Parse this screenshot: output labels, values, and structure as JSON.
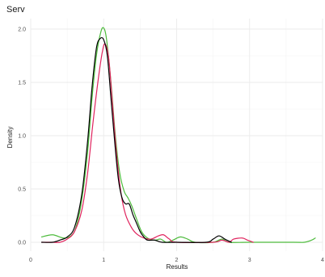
{
  "chart_data": {
    "type": "line",
    "title": "Serv",
    "xlabel": "Results",
    "ylabel": "Density",
    "xlim": [
      0,
      4
    ],
    "ylim": [
      0,
      2.0
    ],
    "x_ticks": [
      "0",
      "1",
      "2",
      "3",
      "4"
    ],
    "y_ticks": [
      "0.0",
      "0.5",
      "1.0",
      "1.5",
      "2.0"
    ],
    "grid": true,
    "legend": "none",
    "series": [
      {
        "color": "#000000",
        "points": [
          [
            0.15,
            0.0
          ],
          [
            0.3,
            0.0
          ],
          [
            0.4,
            0.02
          ],
          [
            0.5,
            0.05
          ],
          [
            0.6,
            0.14
          ],
          [
            0.7,
            0.45
          ],
          [
            0.78,
            0.95
          ],
          [
            0.84,
            1.45
          ],
          [
            0.9,
            1.82
          ],
          [
            0.95,
            1.91
          ],
          [
            1.0,
            1.9
          ],
          [
            1.05,
            1.75
          ],
          [
            1.1,
            1.35
          ],
          [
            1.15,
            0.95
          ],
          [
            1.2,
            0.6
          ],
          [
            1.25,
            0.42
          ],
          [
            1.3,
            0.36
          ],
          [
            1.35,
            0.36
          ],
          [
            1.4,
            0.26
          ],
          [
            1.45,
            0.18
          ],
          [
            1.5,
            0.1
          ],
          [
            1.55,
            0.05
          ],
          [
            1.6,
            0.02
          ],
          [
            1.7,
            0.02
          ],
          [
            1.8,
            0.0
          ],
          [
            2.0,
            0.0
          ],
          [
            2.4,
            0.0
          ],
          [
            2.5,
            0.03
          ],
          [
            2.58,
            0.06
          ],
          [
            2.66,
            0.03
          ],
          [
            2.75,
            0.0
          ]
        ]
      },
      {
        "color": "#e0245e",
        "points": [
          [
            0.15,
            0.0
          ],
          [
            0.3,
            0.0
          ],
          [
            0.4,
            0.0
          ],
          [
            0.5,
            0.03
          ],
          [
            0.6,
            0.1
          ],
          [
            0.7,
            0.3
          ],
          [
            0.78,
            0.65
          ],
          [
            0.85,
            1.1
          ],
          [
            0.92,
            1.5
          ],
          [
            0.98,
            1.78
          ],
          [
            1.02,
            1.86
          ],
          [
            1.07,
            1.72
          ],
          [
            1.12,
            1.3
          ],
          [
            1.18,
            0.8
          ],
          [
            1.24,
            0.45
          ],
          [
            1.3,
            0.26
          ],
          [
            1.38,
            0.14
          ],
          [
            1.45,
            0.08
          ],
          [
            1.55,
            0.04
          ],
          [
            1.65,
            0.03
          ],
          [
            1.75,
            0.06
          ],
          [
            1.82,
            0.07
          ],
          [
            1.9,
            0.03
          ],
          [
            2.0,
            0.0
          ],
          [
            2.5,
            0.0
          ],
          [
            2.62,
            0.02
          ],
          [
            2.72,
            0.0
          ],
          [
            2.78,
            0.03
          ],
          [
            2.9,
            0.04
          ],
          [
            2.97,
            0.02
          ],
          [
            3.05,
            0.0
          ]
        ]
      },
      {
        "color": "#4dbb3c",
        "points": [
          [
            0.15,
            0.05
          ],
          [
            0.3,
            0.07
          ],
          [
            0.45,
            0.04
          ],
          [
            0.55,
            0.06
          ],
          [
            0.62,
            0.14
          ],
          [
            0.7,
            0.4
          ],
          [
            0.78,
            0.85
          ],
          [
            0.84,
            1.35
          ],
          [
            0.9,
            1.75
          ],
          [
            0.96,
            1.97
          ],
          [
            1.0,
            2.01
          ],
          [
            1.04,
            1.9
          ],
          [
            1.1,
            1.5
          ],
          [
            1.16,
            1.0
          ],
          [
            1.22,
            0.65
          ],
          [
            1.28,
            0.48
          ],
          [
            1.33,
            0.42
          ],
          [
            1.38,
            0.35
          ],
          [
            1.45,
            0.22
          ],
          [
            1.52,
            0.1
          ],
          [
            1.6,
            0.04
          ],
          [
            1.7,
            0.02
          ],
          [
            1.78,
            0.03
          ],
          [
            1.86,
            0.0
          ],
          [
            1.95,
            0.02
          ],
          [
            2.05,
            0.05
          ],
          [
            2.15,
            0.03
          ],
          [
            2.25,
            0.0
          ],
          [
            2.5,
            0.0
          ],
          [
            2.62,
            0.03
          ],
          [
            2.72,
            0.0
          ],
          [
            3.0,
            0.0
          ],
          [
            3.6,
            0.0
          ],
          [
            3.75,
            0.0
          ],
          [
            3.85,
            0.02
          ],
          [
            3.9,
            0.04
          ]
        ]
      }
    ]
  }
}
